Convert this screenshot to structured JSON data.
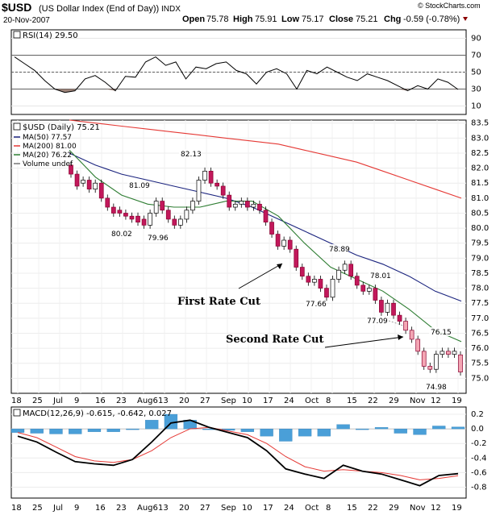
{
  "header": {
    "symbol": "$USD",
    "name": "(US Dollar Index (End of Day))",
    "exchange": "INDX",
    "date": "20-Nov-2007",
    "quote": {
      "open_label": "Open",
      "open": "75.78",
      "high_label": "High",
      "high": "75.91",
      "low_label": "Low",
      "low": "75.17",
      "close_label": "Close",
      "close": "75.21",
      "chg_label": "Chg",
      "chg": "-0.59 (-0.78%)"
    },
    "watermark": "© StockCharts.com"
  },
  "chart_data": [
    {
      "type": "line",
      "panel": "rsi",
      "legend": "RSI(14) 29.50",
      "ylim": [
        0,
        100
      ],
      "yticks": [
        10,
        30,
        50,
        70,
        90
      ],
      "reference_lines": [
        30,
        50,
        70
      ],
      "x": [
        "Jun 18",
        "Jun 21",
        "Jun 25",
        "Jun 28",
        "Jul 2",
        "Jul 6",
        "Jul 10",
        "Jul 13",
        "Jul 17",
        "Jul 20",
        "Jul 24",
        "Jul 27",
        "Jul 31",
        "Aug 3",
        "Aug 7",
        "Aug 10",
        "Aug 14",
        "Aug 17",
        "Aug 21",
        "Aug 24",
        "Aug 28",
        "Aug 31",
        "Sep 4",
        "Sep 7",
        "Sep 11",
        "Sep 14",
        "Sep 18",
        "Sep 21",
        "Sep 25",
        "Sep 28",
        "Oct 2",
        "Oct 5",
        "Oct 9",
        "Oct 12",
        "Oct 16",
        "Oct 19",
        "Oct 23",
        "Oct 26",
        "Oct 30",
        "Nov 2",
        "Nov 6",
        "Nov 9",
        "Nov 13",
        "Nov 16",
        "Nov 20"
      ],
      "values": [
        68,
        60,
        52,
        40,
        30,
        26,
        28,
        42,
        46,
        38,
        28,
        45,
        44,
        62,
        68,
        58,
        62,
        42,
        56,
        54,
        60,
        62,
        52,
        48,
        36,
        50,
        54,
        48,
        30,
        52,
        48,
        56,
        50,
        44,
        40,
        48,
        44,
        40,
        34,
        28,
        34,
        30,
        42,
        38,
        29.5
      ]
    },
    {
      "type": "candlestick",
      "panel": "price",
      "title": "$USD (Daily) 75.21",
      "ylim": [
        74.5,
        83.6
      ],
      "yticks": [
        75.0,
        75.5,
        76.0,
        76.5,
        77.0,
        77.5,
        78.0,
        78.5,
        79.0,
        79.5,
        80.0,
        80.5,
        81.0,
        81.5,
        82.0,
        82.5,
        83.0,
        83.5
      ],
      "legend": [
        {
          "name": "MA(50) 77.57",
          "color": "#1a237e"
        },
        {
          "name": "MA(200) 81.00",
          "color": "#e53935"
        },
        {
          "name": "MA(20) 76.22",
          "color": "#2e7d32"
        },
        {
          "name": "Volume undef",
          "color": "#777777"
        }
      ],
      "candles": [
        {
          "date": "Jun 25",
          "o": 82.1,
          "c": 81.8
        },
        {
          "date": "Jun 27",
          "o": 81.8,
          "c": 81.4
        },
        {
          "date": "Jun 29",
          "o": 81.5,
          "c": 81.6
        },
        {
          "date": "Jul 2",
          "o": 81.6,
          "c": 81.3
        },
        {
          "date": "Jul 4",
          "o": 81.3,
          "c": 81.5
        },
        {
          "date": "Jul 6",
          "o": 81.5,
          "c": 81.0
        },
        {
          "date": "Jul 9",
          "o": 81.0,
          "c": 80.7
        },
        {
          "date": "Jul 11",
          "o": 80.7,
          "c": 80.5
        },
        {
          "date": "Jul 13",
          "o": 80.6,
          "c": 80.5
        },
        {
          "date": "Jul 16",
          "o": 80.5,
          "c": 80.4
        },
        {
          "date": "Jul 18",
          "o": 80.4,
          "c": 80.3
        },
        {
          "date": "Jul 20",
          "o": 80.4,
          "c": 80.2
        },
        {
          "date": "Jul 23",
          "o": 80.3,
          "c": 80.1
        },
        {
          "date": "Jul 25",
          "o": 80.1,
          "c": 80.5
        },
        {
          "date": "Jul 27",
          "o": 80.5,
          "c": 80.9
        },
        {
          "date": "Jul 30",
          "o": 80.9,
          "c": 80.6
        },
        {
          "date": "Aug 1",
          "o": 80.6,
          "c": 80.3
        },
        {
          "date": "Aug 3",
          "o": 80.3,
          "c": 80.1
        },
        {
          "date": "Aug 6",
          "o": 80.1,
          "c": 80.3
        },
        {
          "date": "Aug 8",
          "o": 80.3,
          "c": 80.6
        },
        {
          "date": "Aug 10",
          "o": 80.6,
          "c": 80.9
        },
        {
          "date": "Aug 13",
          "o": 80.9,
          "c": 81.6
        },
        {
          "date": "Aug 15",
          "o": 81.6,
          "c": 81.9
        },
        {
          "date": "Aug 17",
          "o": 81.9,
          "c": 81.5
        },
        {
          "date": "Aug 20",
          "o": 81.5,
          "c": 81.4
        },
        {
          "date": "Aug 22",
          "o": 81.4,
          "c": 81.1
        },
        {
          "date": "Aug 24",
          "o": 81.1,
          "c": 80.7
        },
        {
          "date": "Aug 27",
          "o": 80.7,
          "c": 80.8
        },
        {
          "date": "Aug 29",
          "o": 80.8,
          "c": 80.9
        },
        {
          "date": "Aug 31",
          "o": 80.9,
          "c": 80.7
        },
        {
          "date": "Sep 4",
          "o": 80.7,
          "c": 80.8
        },
        {
          "date": "Sep 6",
          "o": 80.8,
          "c": 80.6
        },
        {
          "date": "Sep 7",
          "o": 80.6,
          "c": 80.2
        },
        {
          "date": "Sep 10",
          "o": 80.2,
          "c": 79.8
        },
        {
          "date": "Sep 12",
          "o": 79.8,
          "c": 79.4
        },
        {
          "date": "Sep 14",
          "o": 79.4,
          "c": 79.6
        },
        {
          "date": "Sep 17",
          "o": 79.6,
          "c": 79.3
        },
        {
          "date": "Sep 19",
          "o": 79.3,
          "c": 78.7
        },
        {
          "date": "Sep 21",
          "o": 78.7,
          "c": 78.4
        },
        {
          "date": "Sep 24",
          "o": 78.4,
          "c": 78.2
        },
        {
          "date": "Sep 26",
          "o": 78.2,
          "c": 78.3
        },
        {
          "date": "Sep 28",
          "o": 78.3,
          "c": 78.0
        },
        {
          "date": "Oct 1",
          "o": 78.0,
          "c": 77.7
        },
        {
          "date": "Oct 3",
          "o": 77.7,
          "c": 78.3
        },
        {
          "date": "Oct 5",
          "o": 78.3,
          "c": 78.6
        },
        {
          "date": "Oct 8",
          "o": 78.6,
          "c": 78.8
        },
        {
          "date": "Oct 10",
          "o": 78.8,
          "c": 78.4
        },
        {
          "date": "Oct 12",
          "o": 78.4,
          "c": 78.1
        },
        {
          "date": "Oct 15",
          "o": 78.1,
          "c": 77.9
        },
        {
          "date": "Oct 17",
          "o": 77.9,
          "c": 78.0
        },
        {
          "date": "Oct 19",
          "o": 78.0,
          "c": 77.6
        },
        {
          "date": "Oct 22",
          "o": 77.6,
          "c": 77.2
        },
        {
          "date": "Oct 24",
          "o": 77.2,
          "c": 77.5
        },
        {
          "date": "Oct 26",
          "o": 77.5,
          "c": 77.1
        },
        {
          "date": "Oct 29",
          "o": 77.1,
          "c": 76.9
        },
        {
          "date": "Oct 31",
          "o": 76.9,
          "c": 76.6
        },
        {
          "date": "Nov 2",
          "o": 76.6,
          "c": 76.3
        },
        {
          "date": "Nov 5",
          "o": 76.3,
          "c": 75.9
        },
        {
          "date": "Nov 7",
          "o": 75.9,
          "c": 75.4
        },
        {
          "date": "Nov 9",
          "o": 75.4,
          "c": 75.3
        },
        {
          "date": "Nov 12",
          "o": 75.3,
          "c": 75.8
        },
        {
          "date": "Nov 14",
          "o": 75.8,
          "c": 75.9
        },
        {
          "date": "Nov 16",
          "o": 75.9,
          "c": 75.8
        },
        {
          "date": "Nov 19",
          "o": 75.8,
          "c": 75.9
        },
        {
          "date": "Nov 20",
          "o": 75.78,
          "c": 75.21
        }
      ],
      "series": [
        {
          "name": "MA(200)",
          "values": [
            83.6,
            83.5,
            83.4,
            83.3,
            83.2,
            83.1,
            83.0,
            82.9,
            82.8,
            82.6,
            82.4,
            82.2,
            81.9,
            81.6,
            81.3,
            81.0
          ]
        },
        {
          "name": "MA(50)",
          "values": [
            82.5,
            82.1,
            81.8,
            81.6,
            81.4,
            81.2,
            81.0,
            80.7,
            80.3,
            79.9,
            79.5,
            79.1,
            78.8,
            78.4,
            77.9,
            77.57
          ]
        },
        {
          "name": "MA(20)",
          "values": [
            82.6,
            81.7,
            81.1,
            80.8,
            80.7,
            80.7,
            80.9,
            80.9,
            80.4,
            79.5,
            78.7,
            78.3,
            77.9,
            77.3,
            76.6,
            76.22
          ]
        }
      ],
      "annotations": [
        "80.02",
        "79.96",
        "81.09",
        "82.13",
        "77.66",
        "78.89",
        "78.01",
        "77.09",
        "76.15",
        "74.98"
      ],
      "notes": [
        {
          "text": "First Rate Cut"
        },
        {
          "text": "Second Rate Cut"
        }
      ]
    },
    {
      "type": "line",
      "panel": "macd",
      "legend": "MACD(12,26,9) -0.615, -0.642, 0.027",
      "ylim": [
        -0.95,
        0.3
      ],
      "yticks": [
        0.2,
        0.0,
        -0.2,
        -0.4,
        -0.6,
        -0.8
      ],
      "series": [
        {
          "name": "MACD",
          "values": [
            -0.1,
            -0.18,
            -0.32,
            -0.45,
            -0.48,
            -0.5,
            -0.42,
            -0.18,
            0.08,
            0.12,
            0.02,
            -0.05,
            -0.12,
            -0.3,
            -0.55,
            -0.62,
            -0.68,
            -0.5,
            -0.58,
            -0.62,
            -0.7,
            -0.78,
            -0.64,
            -0.615
          ]
        },
        {
          "name": "Signal",
          "values": [
            -0.05,
            -0.12,
            -0.25,
            -0.38,
            -0.44,
            -0.46,
            -0.42,
            -0.3,
            -0.12,
            0.0,
            0.02,
            -0.03,
            -0.08,
            -0.2,
            -0.38,
            -0.52,
            -0.58,
            -0.56,
            -0.58,
            -0.6,
            -0.64,
            -0.7,
            -0.68,
            -0.642
          ]
        },
        {
          "name": "Histogram",
          "values": [
            -0.05,
            -0.06,
            -0.07,
            -0.07,
            -0.04,
            -0.04,
            0.0,
            0.12,
            0.2,
            0.12,
            0.0,
            -0.02,
            -0.04,
            -0.1,
            -0.17,
            -0.1,
            -0.1,
            0.06,
            0.0,
            0.02,
            -0.06,
            -0.08,
            0.04,
            0.027
          ]
        }
      ]
    }
  ],
  "x_axis": {
    "labels": [
      "18",
      "25",
      "Jul",
      "9",
      "16",
      "23",
      "Aug6",
      "13",
      "20",
      "27",
      "Sep",
      "10",
      "17",
      "24",
      "Oct",
      "8",
      "15",
      "22",
      "29",
      "Nov",
      "12",
      "19"
    ]
  }
}
